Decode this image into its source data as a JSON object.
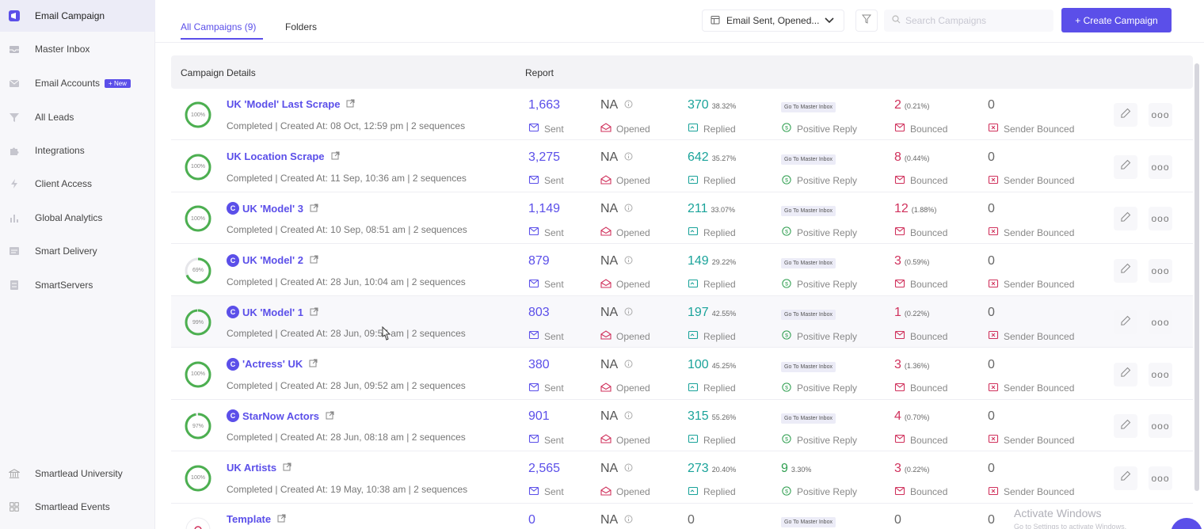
{
  "sidebar": {
    "items": [
      {
        "label": "Email Campaign",
        "icon": "megaphone-icon",
        "new": false
      },
      {
        "label": "Master Inbox",
        "icon": "inbox-icon",
        "new": false
      },
      {
        "label": "Email Accounts",
        "icon": "mail-accounts-icon",
        "new": true
      },
      {
        "label": "All Leads",
        "icon": "leads-icon",
        "new": false
      },
      {
        "label": "Integrations",
        "icon": "puzzle-icon",
        "new": false
      },
      {
        "label": "Client Access",
        "icon": "bolt-icon",
        "new": false
      },
      {
        "label": "Global Analytics",
        "icon": "analytics-icon",
        "new": false
      },
      {
        "label": "Smart Delivery",
        "icon": "delivery-icon",
        "new": false
      },
      {
        "label": "SmartServers",
        "icon": "server-icon",
        "new": false
      }
    ],
    "new_badge": "+ New",
    "bottom": [
      {
        "label": "Smartlead University",
        "icon": "university-icon"
      },
      {
        "label": "Smartlead Events",
        "icon": "events-icon"
      }
    ]
  },
  "header": {
    "tabs": [
      {
        "label": "All Campaigns (9)",
        "active": true
      },
      {
        "label": "Folders",
        "active": false
      }
    ],
    "filter_value": "Email Sent, Opened...",
    "search_placeholder": "Search Campaigns",
    "create_button": "+ Create Campaign"
  },
  "table": {
    "headers": {
      "details": "Campaign Details",
      "report": "Report"
    },
    "labels": {
      "sent": "Sent",
      "opened": "Opened",
      "replied": "Replied",
      "positive_reply": "Positive Reply",
      "bounced": "Bounced",
      "sender_bounced": "Sender Bounced",
      "master_link": "Go To Master Inbox"
    },
    "rows": [
      {
        "name": "UK 'Model' Last Scrape",
        "badge": false,
        "progress": 100,
        "progress_label": "100%",
        "meta": "Completed | Created At: 08 Oct, 12:59 pm | 2 sequences",
        "sent": "1,663",
        "opened": "NA",
        "replied": "370",
        "replied_pct": "38.32%",
        "positive": null,
        "bounced": "2",
        "bounced_pct": "(0.21%)",
        "sender_bounced": "0"
      },
      {
        "name": "UK Location Scrape",
        "badge": false,
        "progress": 100,
        "progress_label": "100%",
        "meta": "Completed | Created At: 11 Sep, 10:36 am | 2 sequences",
        "sent": "3,275",
        "opened": "NA",
        "replied": "642",
        "replied_pct": "35.27%",
        "positive": null,
        "bounced": "8",
        "bounced_pct": "(0.44%)",
        "sender_bounced": "0"
      },
      {
        "name": "UK 'Model' 3",
        "badge": true,
        "progress": 100,
        "progress_label": "100%",
        "meta": "Completed | Created At: 10 Sep, 08:51 am | 2 sequences",
        "sent": "1,149",
        "opened": "NA",
        "replied": "211",
        "replied_pct": "33.07%",
        "positive": null,
        "bounced": "12",
        "bounced_pct": "(1.88%)",
        "sender_bounced": "0"
      },
      {
        "name": "UK 'Model' 2",
        "badge": true,
        "progress": 69,
        "progress_label": "69%",
        "meta": "Completed | Created At: 28 Jun, 10:04 am | 2 sequences",
        "sent": "879",
        "opened": "NA",
        "replied": "149",
        "replied_pct": "29.22%",
        "positive": null,
        "bounced": "3",
        "bounced_pct": "(0.59%)",
        "sender_bounced": "0"
      },
      {
        "name": "UK 'Model' 1",
        "badge": true,
        "progress": 99,
        "progress_label": "99%",
        "meta": "Completed | Created At: 28 Jun, 09:57 am | 2 sequences",
        "sent": "803",
        "opened": "NA",
        "replied": "197",
        "replied_pct": "42.55%",
        "positive": null,
        "bounced": "1",
        "bounced_pct": "(0.22%)",
        "sender_bounced": "0"
      },
      {
        "name": "'Actress' UK",
        "badge": true,
        "progress": 100,
        "progress_label": "100%",
        "meta": "Completed | Created At: 28 Jun, 09:52 am | 2 sequences",
        "sent": "380",
        "opened": "NA",
        "replied": "100",
        "replied_pct": "45.25%",
        "positive": null,
        "bounced": "3",
        "bounced_pct": "(1.36%)",
        "sender_bounced": "0"
      },
      {
        "name": "StarNow Actors",
        "badge": true,
        "progress": 97,
        "progress_label": "97%",
        "meta": "Completed | Created At: 28 Jun, 08:18 am | 2 sequences",
        "sent": "901",
        "opened": "NA",
        "replied": "315",
        "replied_pct": "55.26%",
        "positive": null,
        "bounced": "4",
        "bounced_pct": "(0.70%)",
        "sender_bounced": "0"
      },
      {
        "name": "UK Artists",
        "badge": false,
        "progress": 100,
        "progress_label": "100%",
        "meta": "Completed | Created At: 19 May, 10:38 am | 2 sequences",
        "sent": "2,565",
        "opened": "NA",
        "replied": "273",
        "replied_pct": "20.40%",
        "positive": "9",
        "positive_pct": "3.30%",
        "bounced": "3",
        "bounced_pct": "(0.22%)",
        "sender_bounced": "0"
      },
      {
        "name": "Template",
        "badge": false,
        "progress": 0,
        "progress_label": "",
        "meta": "",
        "sent": "0",
        "opened": "NA",
        "replied": "0",
        "replied_pct": "",
        "positive": null,
        "bounced": "0",
        "bounced_pct": "",
        "sender_bounced": "0"
      }
    ]
  },
  "more_label": "ooo",
  "watermark": {
    "title": "Activate Windows",
    "subtitle": "Go to Settings to activate Windows."
  },
  "colors": {
    "accent": "#5b4fe9",
    "replied": "#1aa39a",
    "bounced": "#d0315c",
    "progress": "#4caf50"
  }
}
